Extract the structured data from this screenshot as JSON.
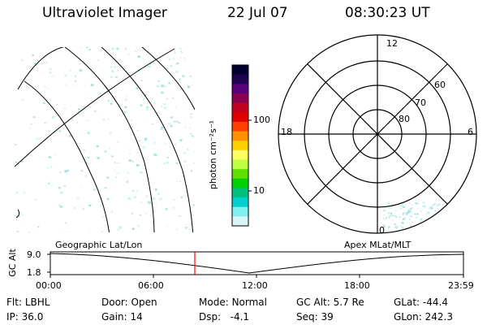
{
  "header": {
    "title": "Ultraviolet Imager",
    "date": "22 Jul 07",
    "time": "08:30:23 UT"
  },
  "colorbar": {
    "unit_label": "photon cm⁻²s⁻¹",
    "ticks": [
      "100",
      "10"
    ],
    "colors": [
      "#000030",
      "#200050",
      "#5a007a",
      "#8a0050",
      "#c00020",
      "#e00000",
      "#ff4000",
      "#ff9000",
      "#ffd000",
      "#ffff60",
      "#c0ff40",
      "#60e000",
      "#00d000",
      "#00c080",
      "#00d0d0",
      "#80f0f0",
      "#d8f4f4"
    ]
  },
  "polar": {
    "labels": {
      "top": "12",
      "left": "18",
      "right": "6",
      "bottom": "0"
    },
    "rings": [
      "60",
      "70",
      "80"
    ]
  },
  "timeline": {
    "left_label": "Geographic Lat/Lon",
    "right_label": "Apex  MLat/MLT",
    "axis_title": "GC Alt",
    "y_top": "9.0",
    "y_bottom": "1.8",
    "ticks": [
      "00:00",
      "06:00",
      "12:00",
      "18:00",
      "23:59"
    ],
    "marker_color": "#ff0000"
  },
  "info": {
    "flt": {
      "label": "Flt:",
      "value": "LBHL"
    },
    "ip": {
      "label": "IP:",
      "value": "36.0"
    },
    "door": {
      "label": "Door:",
      "value": "Open"
    },
    "gain": {
      "label": "Gain:",
      "value": "14"
    },
    "mode": {
      "label": "Mode:",
      "value": "Normal"
    },
    "dsp": {
      "label": "Dsp:",
      "value": "-4.1"
    },
    "gcalt": {
      "label": "GC Alt:",
      "value": "5.7 Re"
    },
    "seq": {
      "label": "Seq:",
      "value": "39"
    },
    "glat": {
      "label": "GLat:",
      "value": "-44.4"
    },
    "glon": {
      "label": "GLon:",
      "value": "242.3"
    }
  }
}
